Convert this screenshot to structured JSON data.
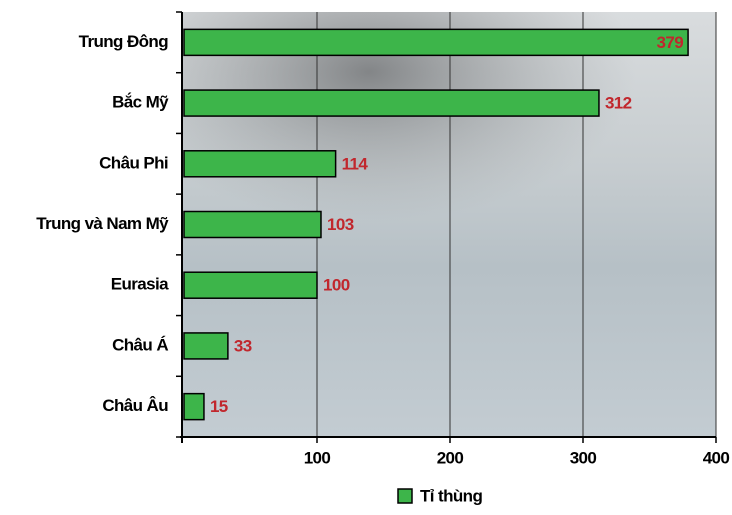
{
  "chart_data": {
    "type": "bar",
    "orientation": "horizontal",
    "categories": [
      "Trung Đông",
      "Bắc Mỹ",
      "Châu Phi",
      "Trung và Nam Mỹ",
      "Eurasia",
      "Châu Á",
      "Châu Âu"
    ],
    "series": [
      {
        "name": "Tỉ thùng",
        "color": "#3db54a",
        "values": [
          379,
          312,
          114,
          103,
          100,
          33,
          15
        ]
      }
    ],
    "xlim": [
      0,
      400
    ],
    "xticks": [
      100,
      200,
      300,
      400
    ],
    "grid": true,
    "legend": "bottom",
    "label_color": "#c1272d"
  }
}
